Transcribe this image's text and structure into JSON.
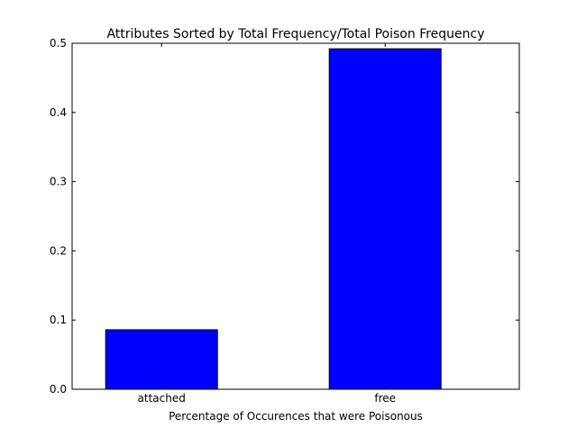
{
  "chart_data": {
    "type": "bar",
    "title": "Attributes Sorted by Total Frequency/Total Poison Frequency",
    "xlabel": "Percentage of Occurences that were Poisonous",
    "ylabel": "",
    "categories": [
      "attached",
      "free"
    ],
    "values": [
      0.086,
      0.492
    ],
    "ylim": [
      0,
      0.5
    ],
    "yticks": [
      "0.0",
      "0.1",
      "0.2",
      "0.3",
      "0.4",
      "0.5"
    ],
    "grid": false,
    "legend": "none",
    "bar_color": "#0000ff"
  }
}
